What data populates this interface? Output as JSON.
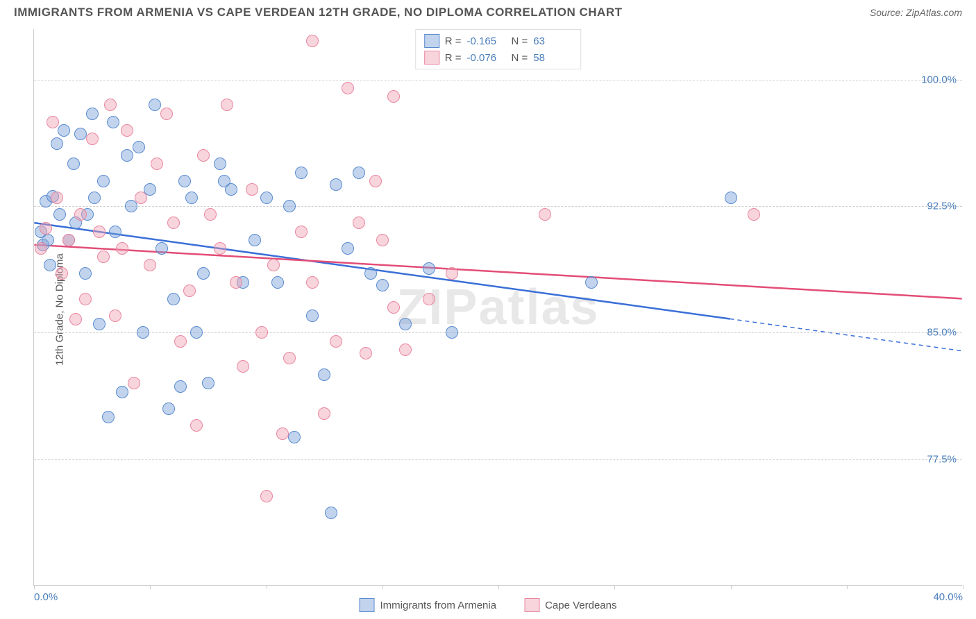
{
  "header": {
    "title": "IMMIGRANTS FROM ARMENIA VS CAPE VERDEAN 12TH GRADE, NO DIPLOMA CORRELATION CHART",
    "source_prefix": "Source: ",
    "source": "ZipAtlas.com"
  },
  "ylabel": "12th Grade, No Diploma",
  "watermark": "ZIPatlas",
  "chart": {
    "type": "scatter",
    "x_min": 0.0,
    "x_max": 40.0,
    "y_min": 70.0,
    "y_max": 103.0,
    "y_gridlines": [
      77.5,
      85.0,
      92.5,
      100.0
    ],
    "y_tick_labels": [
      "77.5%",
      "85.0%",
      "92.5%",
      "100.0%"
    ],
    "x_ticks": [
      0,
      5,
      10,
      15,
      20,
      25,
      30,
      35,
      40
    ],
    "x_labels": {
      "min": "0.0%",
      "max": "40.0%"
    },
    "grid_color": "#d0d0d0",
    "axis_color": "#cccccc",
    "tick_label_color": "#4a7ebb",
    "background_color": "#ffffff"
  },
  "series": [
    {
      "name": "Immigrants from Armenia",
      "fill": "rgba(120,160,216,0.45)",
      "stroke": "#5a8bd0",
      "line_color": "#3a6fd8",
      "R": "-0.165",
      "N": "63",
      "trend": {
        "x1": 0,
        "y1": 91.5,
        "x2_solid": 30,
        "y2_solid": 85.8,
        "x2": 40,
        "y2": 83.9
      },
      "points": [
        [
          0.3,
          91.0
        ],
        [
          0.4,
          90.2
        ],
        [
          0.5,
          92.8
        ],
        [
          0.6,
          90.5
        ],
        [
          0.7,
          89.0
        ],
        [
          0.8,
          93.1
        ],
        [
          1.0,
          96.2
        ],
        [
          1.1,
          92.0
        ],
        [
          1.3,
          97.0
        ],
        [
          1.5,
          90.5
        ],
        [
          1.7,
          95.0
        ],
        [
          1.8,
          91.5
        ],
        [
          2.0,
          96.8
        ],
        [
          2.2,
          88.5
        ],
        [
          2.3,
          92.0
        ],
        [
          2.5,
          98.0
        ],
        [
          2.6,
          93.0
        ],
        [
          2.8,
          85.5
        ],
        [
          3.0,
          94.0
        ],
        [
          3.2,
          80.0
        ],
        [
          3.4,
          97.5
        ],
        [
          3.5,
          91.0
        ],
        [
          3.8,
          81.5
        ],
        [
          4.0,
          95.5
        ],
        [
          4.2,
          92.5
        ],
        [
          4.5,
          96.0
        ],
        [
          4.7,
          85.0
        ],
        [
          5.0,
          93.5
        ],
        [
          5.2,
          98.5
        ],
        [
          5.5,
          90.0
        ],
        [
          5.8,
          80.5
        ],
        [
          6.0,
          87.0
        ],
        [
          6.3,
          81.8
        ],
        [
          6.5,
          94.0
        ],
        [
          6.8,
          93.0
        ],
        [
          7.0,
          85.0
        ],
        [
          7.3,
          88.5
        ],
        [
          7.5,
          82.0
        ],
        [
          8.0,
          95.0
        ],
        [
          8.2,
          94.0
        ],
        [
          8.5,
          93.5
        ],
        [
          9.0,
          88.0
        ],
        [
          9.5,
          90.5
        ],
        [
          10.0,
          93.0
        ],
        [
          10.5,
          88.0
        ],
        [
          11.0,
          92.5
        ],
        [
          11.2,
          78.8
        ],
        [
          11.5,
          94.5
        ],
        [
          12.0,
          86.0
        ],
        [
          12.5,
          82.5
        ],
        [
          12.8,
          74.3
        ],
        [
          13.0,
          93.8
        ],
        [
          13.5,
          90.0
        ],
        [
          14.0,
          94.5
        ],
        [
          14.5,
          88.5
        ],
        [
          15.0,
          87.8
        ],
        [
          16.0,
          85.5
        ],
        [
          17.0,
          88.8
        ],
        [
          18.0,
          85.0
        ],
        [
          24.0,
          88.0
        ],
        [
          30.0,
          93.0
        ]
      ]
    },
    {
      "name": "Cape Verdeans",
      "fill": "rgba(240,160,180,0.45)",
      "stroke": "#e887a0",
      "line_color": "#e34d77",
      "R": "-0.076",
      "N": "58",
      "trend": {
        "x1": 0,
        "y1": 90.2,
        "x2_solid": 40,
        "y2_solid": 87.0,
        "x2": 40,
        "y2": 87.0
      },
      "points": [
        [
          0.3,
          90.0
        ],
        [
          0.5,
          91.2
        ],
        [
          0.8,
          97.5
        ],
        [
          1.0,
          93.0
        ],
        [
          1.2,
          88.5
        ],
        [
          1.5,
          90.5
        ],
        [
          1.8,
          85.8
        ],
        [
          2.0,
          92.0
        ],
        [
          2.2,
          87.0
        ],
        [
          2.5,
          96.5
        ],
        [
          2.8,
          91.0
        ],
        [
          3.0,
          89.5
        ],
        [
          3.3,
          98.5
        ],
        [
          3.5,
          86.0
        ],
        [
          3.8,
          90.0
        ],
        [
          4.0,
          97.0
        ],
        [
          4.3,
          82.0
        ],
        [
          4.6,
          93.0
        ],
        [
          5.0,
          89.0
        ],
        [
          5.3,
          95.0
        ],
        [
          5.7,
          98.0
        ],
        [
          6.0,
          91.5
        ],
        [
          6.3,
          84.5
        ],
        [
          6.7,
          87.5
        ],
        [
          7.0,
          79.5
        ],
        [
          7.3,
          95.5
        ],
        [
          7.6,
          92.0
        ],
        [
          8.0,
          90.0
        ],
        [
          8.3,
          98.5
        ],
        [
          8.7,
          88.0
        ],
        [
          9.0,
          83.0
        ],
        [
          9.4,
          93.5
        ],
        [
          9.8,
          85.0
        ],
        [
          10.0,
          75.3
        ],
        [
          10.3,
          89.0
        ],
        [
          10.7,
          79.0
        ],
        [
          11.0,
          83.5
        ],
        [
          11.5,
          91.0
        ],
        [
          12.0,
          88.0
        ],
        [
          12.0,
          102.3
        ],
        [
          12.5,
          80.2
        ],
        [
          13.0,
          84.5
        ],
        [
          13.5,
          99.5
        ],
        [
          14.0,
          91.5
        ],
        [
          14.3,
          83.8
        ],
        [
          14.7,
          94.0
        ],
        [
          15.0,
          90.5
        ],
        [
          15.5,
          86.5
        ],
        [
          15.5,
          99.0
        ],
        [
          16.0,
          84.0
        ],
        [
          17.0,
          87.0
        ],
        [
          18.0,
          88.5
        ],
        [
          22.0,
          92.0
        ],
        [
          31.0,
          92.0
        ]
      ]
    }
  ],
  "legend": {
    "r_prefix": "R",
    "n_prefix": "N",
    "equals": " = "
  }
}
